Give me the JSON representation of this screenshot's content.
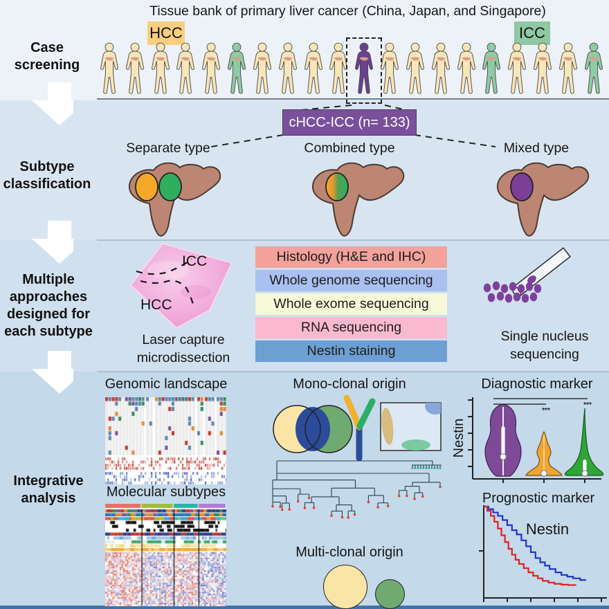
{
  "figure": {
    "title": "Tissue bank of primary liver cancer (China, Japan, and Singapore)",
    "stages": [
      {
        "label": "Case\nscreening"
      },
      {
        "label": "Subtype\nclassification"
      },
      {
        "label": "Multiple\napproaches\ndesigned for\neach subtype"
      },
      {
        "label": "Integrative\nanalysis"
      }
    ],
    "case_screening": {
      "hcc_badge": "HCC",
      "icc_badge": "ICC",
      "people_pattern": [
        "hcc",
        "hcc",
        "hcc",
        "hcc",
        "hcc",
        "icc",
        "hcc",
        "hcc",
        "hcc",
        "hcc",
        "chcc",
        "hcc",
        "hcc",
        "hcc",
        "hcc",
        "icc",
        "hcc",
        "hcc",
        "hcc",
        "icc"
      ]
    },
    "subtype_classification": {
      "banner": "cHCC-ICC (n= 133)",
      "types": [
        {
          "name": "Separate type"
        },
        {
          "name": "Combined type"
        },
        {
          "name": "Mixed type"
        }
      ]
    },
    "approaches": {
      "lcm": {
        "icc_label": "ICC",
        "hcc_label": "HCC",
        "caption": "Laser capture\nmicrodissection"
      },
      "methods": [
        {
          "label": "Histology (H&E and IHC)",
          "color": "#F2A19B"
        },
        {
          "label": "Whole genome sequencing",
          "color": "#A9C0F0"
        },
        {
          "label": "Whole exome sequencing",
          "color": "#F8F9D9"
        },
        {
          "label": "RNA sequencing",
          "color": "#FBB9CF"
        },
        {
          "label": "Nestin staining",
          "color": "#6E9FD3"
        }
      ],
      "sns_caption": "Single nucleus\nsequencing"
    },
    "integrative": {
      "genomic_title": "Genomic landscape",
      "molecular_title": "Molecular subtypes",
      "mono_title": "Mono-clonal origin",
      "multi_title": "Multi-clonal origin",
      "diagnostic_title": "Diagnostic marker",
      "prognostic_title": "Prognostic marker",
      "violin_ylabel": "Nestin",
      "survival_annotation": "Nestin",
      "sig1": "***",
      "sig2": "***"
    }
  },
  "colors": {
    "background": {
      "s1": "#edf2f8",
      "s2": "#d8e5f1",
      "s3": "#d0e0ee",
      "s4": "#c4d9ea",
      "bottom_strip": "#4173a8"
    },
    "person": {
      "hcc": "#F9E6B8",
      "icc": "#8FCBA4",
      "chcc": "#6A4190",
      "liver": "#DE9D87",
      "outline": "#4a4a4a"
    },
    "badge": {
      "hcc": "#F8CE7F",
      "icc": "#8FC8A3"
    },
    "banner": {
      "bg": "#7A4F9C",
      "border": "#533768",
      "text": "#ffffff"
    },
    "liver": {
      "fill": "#BD8672",
      "stroke": "#4a3a33"
    },
    "tumor": {
      "hcc": "#F5A828",
      "icc": "#2FAF5E",
      "mixed": "#7B3F98"
    },
    "tissue": {
      "base": "#EC9CD3",
      "light": "#F8CCE9"
    },
    "nuclei": "#7E3F9D",
    "venn": {
      "yellow": "#FAE5A6",
      "green": "#6FAB70",
      "blue": "#2C4B9B"
    },
    "antibody": {
      "left": "#F2B02C",
      "right": "#2BAE66",
      "stem": "#2C4B9B"
    },
    "ihc_panel": {
      "bg": "#DCE9F4",
      "tan": "#D8BC7E",
      "blue": "#8AA7DA",
      "green": "#7CC9A3"
    },
    "clone": {
      "hcc": "#FAE5A6",
      "icc": "#6FAB70"
    },
    "violin": {
      "purple": "#7E4A97",
      "orange": "#F0A432",
      "green": "#2FA536"
    },
    "survival": {
      "blue": "#2233CC",
      "red": "#E02020"
    },
    "tree": {
      "line": "#26424e",
      "tip": "#E0442F",
      "teal": "#2E9E96"
    }
  },
  "chart_data": [
    {
      "type": "violin",
      "title": "Diagnostic marker",
      "ylabel": "Nestin",
      "groups": [
        {
          "color": "#7E4A97",
          "expression": "high"
        },
        {
          "color": "#F0A432",
          "expression": "low"
        },
        {
          "color": "#2FA536",
          "expression": "low"
        }
      ],
      "significance": [
        "***",
        "***"
      ]
    },
    {
      "type": "line",
      "variant": "kaplan-meier-survival",
      "title": "Prognostic marker",
      "annotation": "Nestin",
      "series": [
        {
          "name": "blue-curve",
          "color": "#2233CC",
          "points": [
            [
              0,
              0
            ],
            [
              0.04,
              0.03
            ],
            [
              0.08,
              0.07
            ],
            [
              0.12,
              0.11
            ],
            [
              0.16,
              0.16
            ],
            [
              0.2,
              0.22
            ],
            [
              0.24,
              0.28
            ],
            [
              0.28,
              0.33
            ],
            [
              0.32,
              0.4
            ],
            [
              0.36,
              0.47
            ],
            [
              0.4,
              0.54
            ],
            [
              0.44,
              0.61
            ],
            [
              0.48,
              0.66
            ],
            [
              0.52,
              0.7
            ],
            [
              0.56,
              0.74
            ],
            [
              0.61,
              0.78
            ],
            [
              0.66,
              0.81
            ],
            [
              0.71,
              0.83
            ],
            [
              0.76,
              0.85
            ],
            [
              0.82,
              0.87
            ],
            [
              0.87,
              0.87
            ]
          ]
        },
        {
          "name": "red-curve",
          "color": "#E02020",
          "points": [
            [
              0,
              0
            ],
            [
              0.03,
              0.05
            ],
            [
              0.06,
              0.11
            ],
            [
              0.09,
              0.18
            ],
            [
              0.12,
              0.26
            ],
            [
              0.15,
              0.34
            ],
            [
              0.18,
              0.42
            ],
            [
              0.21,
              0.5
            ],
            [
              0.24,
              0.57
            ],
            [
              0.27,
              0.63
            ],
            [
              0.3,
              0.68
            ],
            [
              0.34,
              0.73
            ],
            [
              0.38,
              0.78
            ],
            [
              0.42,
              0.82
            ],
            [
              0.46,
              0.85
            ],
            [
              0.5,
              0.88
            ],
            [
              0.55,
              0.9
            ],
            [
              0.6,
              0.915
            ],
            [
              0.66,
              0.925
            ],
            [
              0.72,
              0.93
            ],
            [
              0.78,
              0.935
            ]
          ]
        }
      ]
    }
  ]
}
